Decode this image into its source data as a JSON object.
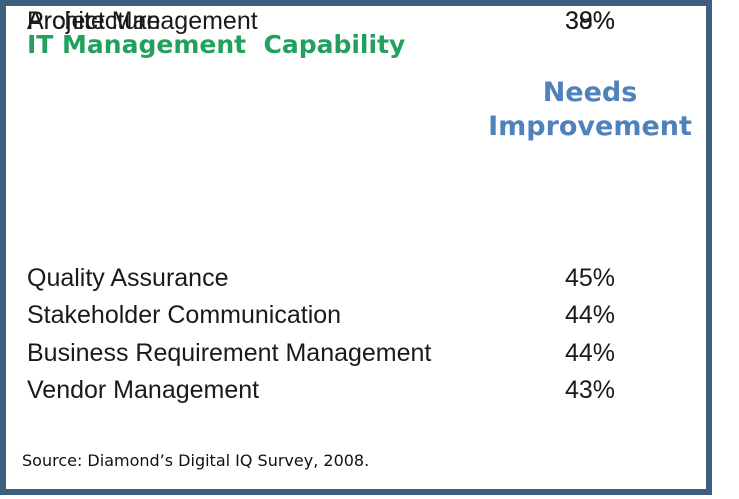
{
  "title": {
    "text": "IT Management  Capability"
  },
  "table": {
    "value_header": {
      "line1": "Needs",
      "line2": "Improvement"
    },
    "rows": [
      {
        "label": "Quality Assurance",
        "value": "45%"
      },
      {
        "label": "Stakeholder Communication",
        "value": "44%"
      },
      {
        "label": "Business Requirement Management",
        "value": "44%"
      },
      {
        "label": "Vendor Management",
        "value": "43%"
      },
      {
        "label": "Project Management",
        "value": "39%"
      },
      {
        "label": "Architecture",
        "value": "38%"
      }
    ]
  },
  "source": {
    "text": "Source: Diamond’s Digital IQ Survey, 2008."
  },
  "colors": {
    "frame_border": "#3E5E80",
    "title_green": "#21A15D",
    "header_blue": "#4F81BD",
    "body_text": "#1A1A1A"
  },
  "chart_data": {
    "type": "table",
    "title": "IT Management Capability",
    "columns": [
      "Capability",
      "Needs Improvement"
    ],
    "categories": [
      "Quality Assurance",
      "Stakeholder Communication",
      "Business Requirement Management",
      "Vendor Management",
      "Project Management",
      "Architecture"
    ],
    "values": [
      45,
      44,
      44,
      43,
      39,
      38
    ],
    "value_format": "percent",
    "legend": "none",
    "grid": false,
    "source": "Source: Diamond’s Digital IQ Survey, 2008."
  }
}
